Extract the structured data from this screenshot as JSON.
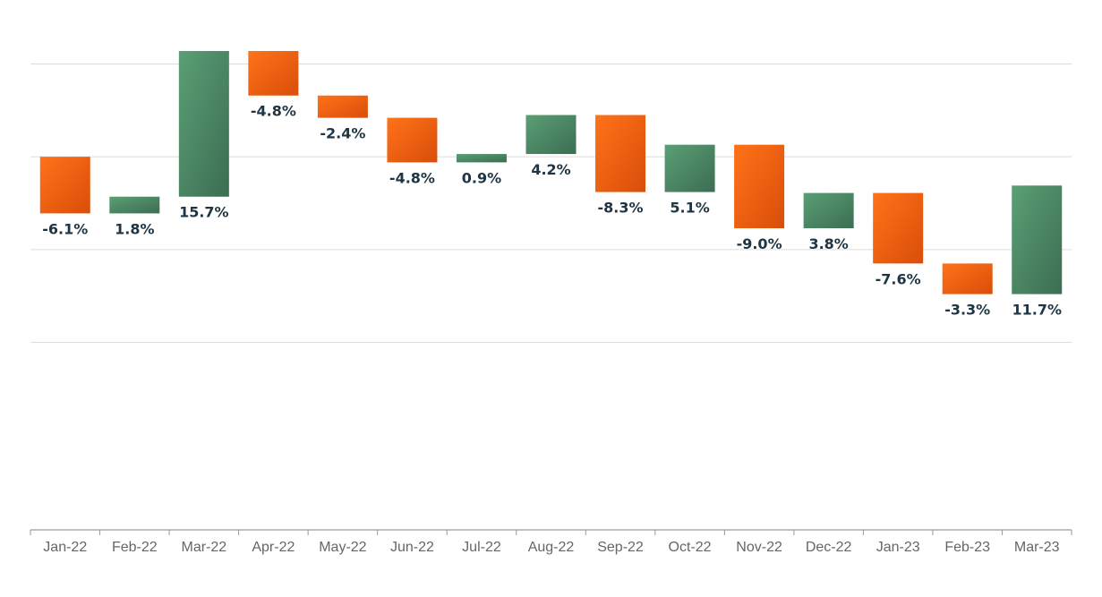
{
  "chart_data": {
    "type": "bar",
    "subtype": "waterfall",
    "title": "",
    "xlabel": "",
    "ylabel": "",
    "grid": true,
    "legend": "none",
    "categories": [
      "Jan-22",
      "Feb-22",
      "Mar-22",
      "Apr-22",
      "May-22",
      "Jun-22",
      "Jul-22",
      "Aug-22",
      "Sep-22",
      "Oct-22",
      "Nov-22",
      "Dec-22",
      "Jan-23",
      "Feb-23",
      "Mar-23"
    ],
    "values": [
      -6.1,
      1.8,
      15.7,
      -4.8,
      -2.4,
      -4.8,
      0.9,
      4.2,
      -8.3,
      5.1,
      -9.0,
      3.8,
      -7.6,
      -3.3,
      11.7
    ],
    "labels": [
      "-6.1%",
      "1.8%",
      "15.7%",
      "-4.8%",
      "-2.4%",
      "-4.8%",
      "0.9%",
      "4.2%",
      "-8.3%",
      "5.1%",
      "-9.0%",
      "3.8%",
      "-7.6%",
      "-3.3%",
      "11.7%"
    ],
    "start_value": 0,
    "unit": "%",
    "ylim": [
      -30,
      20
    ],
    "gridlines": [
      -20,
      -10,
      0,
      10
    ],
    "colors": {
      "increase_top": "#5a9f74",
      "increase_bottom": "#3c6d53",
      "decrease_top": "#ff7219",
      "decrease_bottom": "#d94e0a",
      "label": "#1e3544",
      "tick_label": "#666666"
    }
  }
}
